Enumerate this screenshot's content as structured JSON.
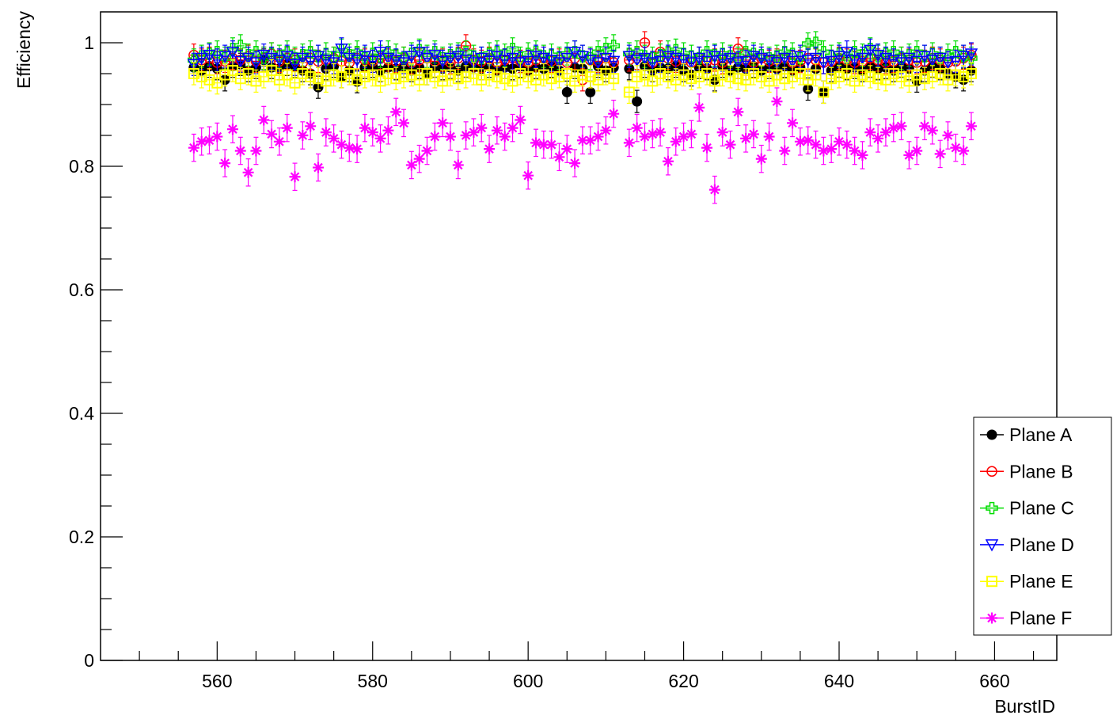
{
  "chart_data": {
    "type": "scatter",
    "title": "",
    "xlabel": "BurstID",
    "ylabel": "Efficiency",
    "xlim": [
      545,
      668
    ],
    "ylim": [
      0,
      1.05
    ],
    "x_ticks": [
      560,
      580,
      600,
      620,
      640,
      660
    ],
    "y_ticks": [
      0,
      0.2,
      0.4,
      0.6,
      0.8,
      1
    ],
    "y_tick_labels": [
      "0",
      "0.2",
      "0.4",
      "0.6",
      "0.8",
      "1"
    ],
    "grid": false,
    "legend_position": "bottom-right",
    "x_start": 557,
    "x_end": 657,
    "missing_x": [
      612
    ],
    "series": [
      {
        "name": "Plane A",
        "color": "#000000",
        "marker": "filled-circle",
        "values": [
          0.96,
          0.955,
          0.962,
          0.958,
          0.94,
          0.962,
          0.965,
          0.955,
          0.96,
          0.972,
          0.96,
          0.958,
          0.965,
          0.962,
          0.955,
          0.95,
          0.928,
          0.958,
          0.962,
          0.945,
          0.955,
          0.937,
          0.96,
          0.962,
          0.955,
          0.96,
          0.958,
          0.962,
          0.955,
          0.96,
          0.95,
          0.962,
          0.958,
          0.96,
          0.955,
          0.962,
          0.96,
          0.958,
          0.962,
          0.955,
          0.96,
          0.958,
          0.962,
          0.955,
          0.96,
          0.958,
          0.962,
          0.955,
          0.92,
          0.96,
          0.958,
          0.92,
          0.962,
          0.955,
          0.96,
          null,
          0.958,
          0.905,
          0.962,
          0.955,
          0.96,
          0.958,
          0.962,
          0.955,
          0.948,
          0.96,
          0.958,
          0.94,
          0.962,
          0.955,
          0.96,
          0.958,
          0.962,
          0.955,
          0.96,
          0.958,
          0.962,
          0.955,
          0.96,
          0.925,
          0.958,
          0.92,
          0.955,
          0.962,
          0.958,
          0.96,
          0.955,
          0.962,
          0.958,
          0.96,
          0.955,
          0.962,
          0.958,
          0.938,
          0.955,
          0.962,
          0.958,
          0.95,
          0.945,
          0.94,
          0.955
        ]
      },
      {
        "name": "Plane B",
        "color": "#ff0000",
        "marker": "open-circle",
        "values": [
          0.98,
          0.972,
          0.975,
          0.968,
          0.97,
          0.975,
          0.972,
          0.978,
          0.97,
          0.975,
          0.982,
          0.97,
          0.975,
          0.972,
          0.968,
          0.975,
          0.97,
          0.972,
          0.975,
          0.97,
          0.968,
          0.975,
          0.972,
          0.97,
          0.975,
          0.972,
          0.97,
          0.975,
          0.968,
          0.972,
          0.975,
          0.97,
          0.972,
          0.968,
          0.975,
          0.995,
          0.972,
          0.97,
          0.975,
          0.968,
          0.972,
          0.975,
          0.97,
          0.968,
          0.972,
          0.975,
          0.97,
          0.972,
          0.968,
          0.975,
          0.94,
          0.972,
          0.97,
          0.975,
          0.968,
          null,
          0.972,
          0.975,
          1.0,
          0.968,
          0.985,
          0.975,
          0.97,
          0.972,
          0.968,
          0.975,
          0.97,
          0.972,
          0.968,
          0.975,
          0.99,
          0.972,
          0.968,
          0.975,
          0.97,
          0.972,
          0.975,
          0.968,
          0.97,
          0.975,
          0.972,
          0.968,
          0.97,
          0.975,
          0.972,
          0.968,
          0.97,
          0.975,
          0.972,
          0.968,
          0.97,
          0.975,
          0.972,
          0.968,
          0.97,
          0.975,
          0.972,
          0.968,
          0.97,
          0.975,
          0.98
        ]
      },
      {
        "name": "Plane C",
        "color": "#00dd00",
        "marker": "open-cross",
        "values": [
          0.972,
          0.978,
          0.982,
          0.985,
          0.975,
          0.99,
          0.995,
          0.98,
          0.985,
          0.975,
          0.982,
          0.978,
          0.985,
          0.975,
          0.98,
          0.985,
          0.978,
          0.982,
          0.975,
          0.988,
          0.98,
          0.985,
          0.975,
          0.982,
          0.978,
          0.985,
          0.98,
          0.975,
          0.982,
          0.988,
          0.978,
          0.985,
          0.975,
          0.98,
          0.982,
          0.985,
          0.978,
          0.975,
          0.982,
          0.985,
          0.98,
          0.99,
          0.975,
          0.982,
          0.985,
          0.978,
          0.98,
          0.975,
          0.982,
          0.985,
          0.978,
          0.975,
          0.985,
          0.99,
          0.995,
          null,
          0.982,
          0.985,
          0.978,
          0.975,
          0.98,
          0.985,
          0.988,
          0.982,
          0.978,
          0.975,
          0.985,
          0.98,
          0.982,
          0.978,
          0.975,
          0.985,
          0.982,
          0.98,
          0.975,
          0.978,
          0.985,
          0.982,
          0.975,
          0.998,
          1.0,
          0.985,
          0.978,
          0.982,
          0.975,
          0.985,
          0.98,
          0.99,
          0.978,
          0.982,
          0.985,
          0.975,
          0.98,
          0.985,
          0.978,
          0.982,
          0.975,
          0.98,
          0.985,
          0.978,
          0.975
        ]
      },
      {
        "name": "Plane D",
        "color": "#0000ff",
        "marker": "open-triangle-down",
        "values": [
          0.965,
          0.975,
          0.98,
          0.972,
          0.978,
          0.985,
          0.97,
          0.975,
          0.968,
          0.98,
          0.975,
          0.972,
          0.978,
          0.965,
          0.975,
          0.97,
          0.978,
          0.972,
          0.968,
          0.99,
          0.975,
          0.972,
          0.978,
          0.97,
          0.985,
          0.975,
          0.972,
          0.968,
          0.978,
          0.985,
          0.975,
          0.98,
          0.97,
          0.975,
          0.978,
          0.972,
          0.968,
          0.975,
          0.97,
          0.978,
          0.972,
          0.975,
          0.968,
          0.97,
          0.978,
          0.975,
          0.972,
          0.968,
          0.975,
          0.985,
          0.978,
          0.972,
          0.968,
          0.975,
          0.97,
          null,
          0.978,
          0.972,
          0.975,
          0.968,
          0.97,
          0.978,
          0.975,
          0.972,
          0.968,
          0.975,
          0.97,
          0.978,
          0.972,
          0.975,
          0.968,
          0.97,
          0.978,
          0.975,
          0.972,
          0.968,
          0.975,
          0.97,
          0.978,
          0.972,
          0.975,
          0.968,
          0.97,
          0.978,
          0.985,
          0.972,
          0.975,
          0.988,
          0.98,
          0.975,
          0.972,
          0.968,
          0.975,
          0.97,
          0.978,
          0.972,
          0.975,
          0.968,
          0.97,
          0.978,
          0.982
        ]
      },
      {
        "name": "Plane E",
        "color": "#ffff00",
        "marker": "open-square",
        "values": [
          0.95,
          0.945,
          0.94,
          0.935,
          0.948,
          0.955,
          0.942,
          0.95,
          0.938,
          0.945,
          0.955,
          0.94,
          0.948,
          0.935,
          0.95,
          0.945,
          0.942,
          0.938,
          0.948,
          0.945,
          0.95,
          0.94,
          0.945,
          0.948,
          0.938,
          0.95,
          0.942,
          0.945,
          0.948,
          0.94,
          0.95,
          0.945,
          0.938,
          0.948,
          0.942,
          0.945,
          0.95,
          0.94,
          0.948,
          0.945,
          0.942,
          0.938,
          0.95,
          0.945,
          0.94,
          0.948,
          0.942,
          0.945,
          0.95,
          0.938,
          0.948,
          0.945,
          0.94,
          0.95,
          0.942,
          null,
          0.92,
          0.945,
          0.948,
          0.938,
          0.95,
          0.945,
          0.94,
          0.948,
          0.942,
          0.945,
          0.95,
          0.938,
          0.948,
          0.945,
          0.942,
          0.94,
          0.95,
          0.945,
          0.938,
          0.948,
          0.942,
          0.945,
          0.95,
          0.94,
          0.948,
          0.92,
          0.942,
          0.945,
          0.95,
          0.938,
          0.948,
          0.945,
          0.942,
          0.94,
          0.95,
          0.945,
          0.938,
          0.948,
          0.942,
          0.945,
          0.95,
          0.94,
          0.948,
          0.945,
          0.95
        ]
      },
      {
        "name": "Plane F",
        "color": "#ff00ff",
        "marker": "open-star",
        "values": [
          0.83,
          0.84,
          0.842,
          0.848,
          0.805,
          0.86,
          0.825,
          0.79,
          0.825,
          0.875,
          0.852,
          0.84,
          0.862,
          0.783,
          0.85,
          0.865,
          0.798,
          0.855,
          0.845,
          0.835,
          0.83,
          0.828,
          0.862,
          0.855,
          0.845,
          0.858,
          0.888,
          0.87,
          0.802,
          0.812,
          0.825,
          0.848,
          0.87,
          0.848,
          0.802,
          0.85,
          0.855,
          0.862,
          0.828,
          0.858,
          0.848,
          0.862,
          0.875,
          0.785,
          0.838,
          0.835,
          0.835,
          0.815,
          0.828,
          0.805,
          0.842,
          0.842,
          0.848,
          0.858,
          0.885,
          null,
          0.838,
          0.862,
          0.848,
          0.852,
          0.855,
          0.808,
          0.84,
          0.848,
          0.852,
          0.895,
          0.83,
          0.762,
          0.855,
          0.835,
          0.888,
          0.845,
          0.852,
          0.812,
          0.848,
          0.905,
          0.825,
          0.87,
          0.84,
          0.842,
          0.835,
          0.825,
          0.828,
          0.84,
          0.835,
          0.825,
          0.818,
          0.855,
          0.845,
          0.855,
          0.862,
          0.865,
          0.818,
          0.825,
          0.865,
          0.858,
          0.82,
          0.85,
          0.83,
          0.825,
          0.865
        ]
      }
    ]
  }
}
